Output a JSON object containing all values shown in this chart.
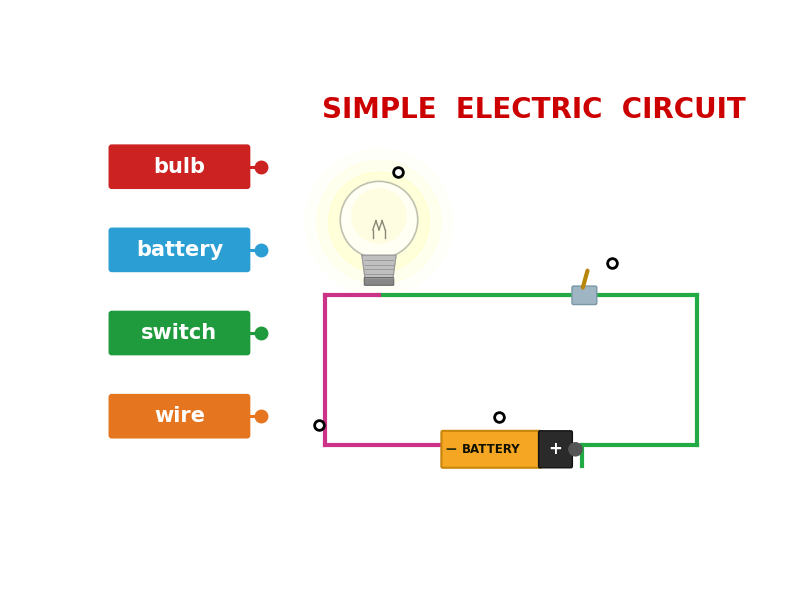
{
  "title": "SIMPLE  ELECTRIC  CIRCUIT",
  "title_color": "#cc0000",
  "title_fontsize": 20,
  "bg_color": "#ffffff",
  "labels": [
    {
      "text": "bulb",
      "color": "#cc2222",
      "yf": 0.795,
      "dot_color": "#cc2222"
    },
    {
      "text": "battery",
      "color": "#2b9fd4",
      "yf": 0.615,
      "dot_color": "#2b9fd4"
    },
    {
      "text": "switch",
      "color": "#1f9a3c",
      "yf": 0.435,
      "dot_color": "#1f9a3c"
    },
    {
      "text": "wire",
      "color": "#e67520",
      "yf": 0.255,
      "dot_color": "#e67520"
    }
  ],
  "circuit_wire_color_green": "#22aa44",
  "circuit_wire_color_pink": "#cc3388",
  "circuit_linewidth": 3.0,
  "connection_dot_size": 7
}
